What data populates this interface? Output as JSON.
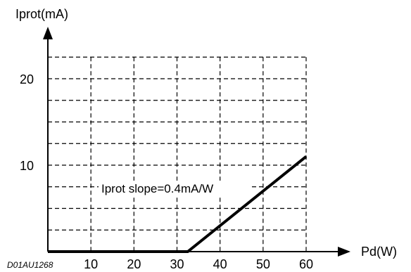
{
  "chart_data": {
    "type": "line",
    "title": "",
    "xlabel": "Pd(W)",
    "ylabel": "Iprot(mA)",
    "x_ticks": [
      10,
      20,
      30,
      40,
      50,
      60
    ],
    "y_ticks": [
      10,
      20
    ],
    "x_grid": [
      10,
      20,
      30,
      40,
      50,
      60
    ],
    "y_grid": [
      2.5,
      5,
      7.5,
      10,
      12.5,
      15,
      17.5,
      20,
      22.5
    ],
    "xlim": [
      0,
      60
    ],
    "ylim": [
      0,
      22.5
    ],
    "grid": true,
    "grid_style": "dashed",
    "series": [
      {
        "name": "",
        "color": "#000000",
        "points": [
          {
            "x": 0,
            "y": 0
          },
          {
            "x": 32.5,
            "y": 0
          },
          {
            "x": 60,
            "y": 11
          }
        ]
      }
    ],
    "annotation": "Iprot slope=0.4mA/W",
    "figure_id": "D01AU1268"
  }
}
